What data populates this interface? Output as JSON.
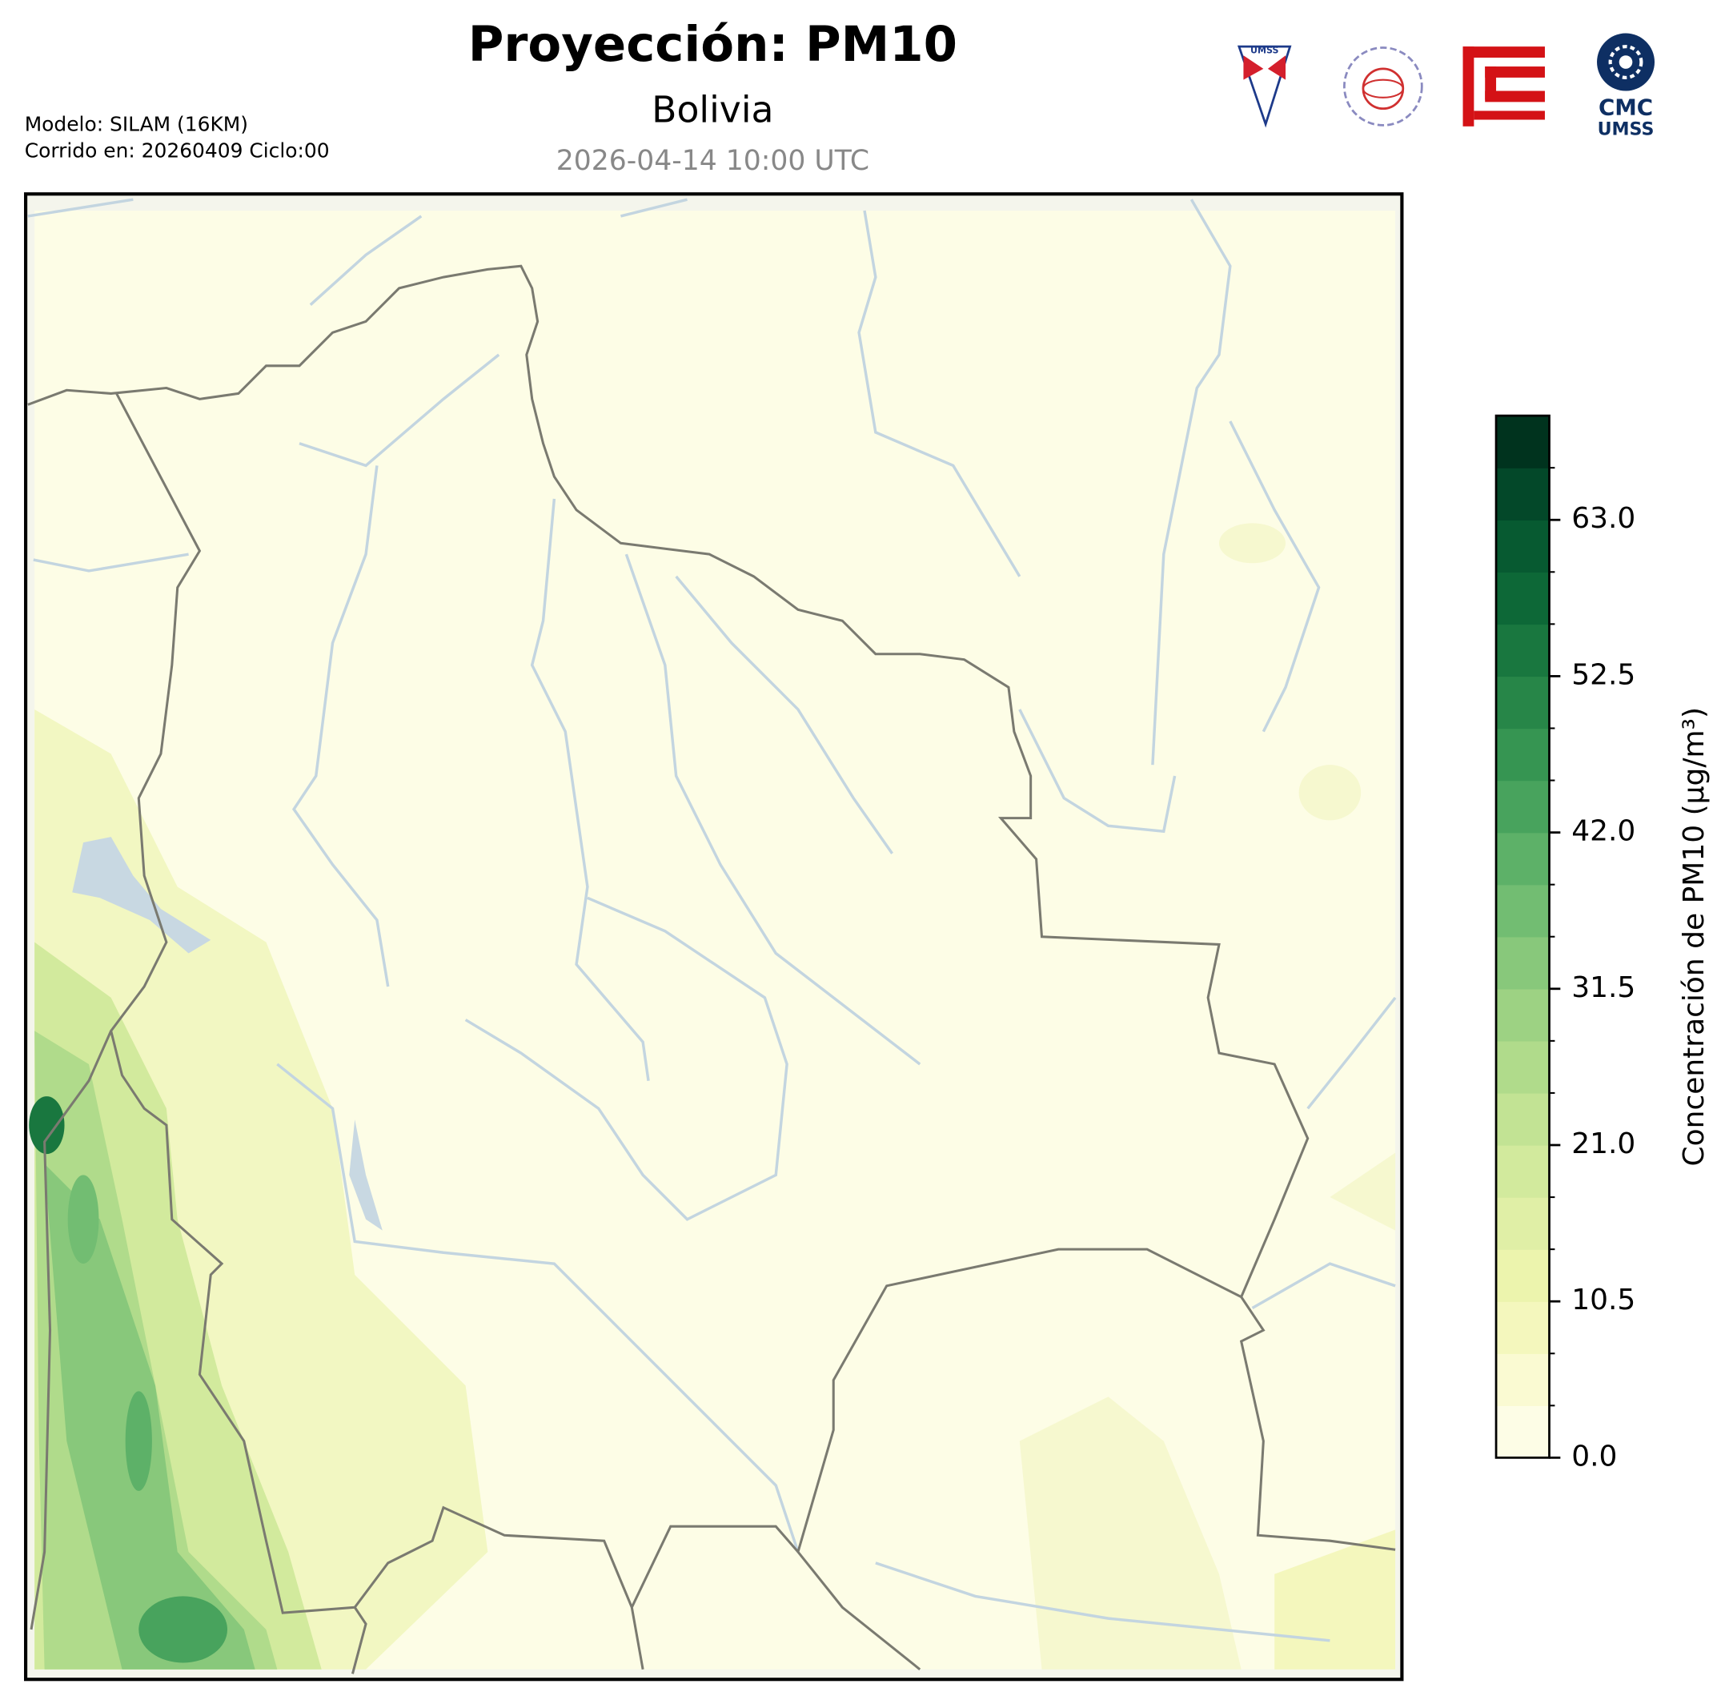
{
  "chart_data": {
    "type": "contour-map",
    "title": "Proyección: PM10",
    "subtitle": "Bolivia",
    "datetime": "2026-04-14 10:00 UTC",
    "model": "Modelo: SILAM (16KM)",
    "run": "Corrido en: 20260409 Ciclo:00",
    "logos": {
      "umss": "UMSS",
      "cmc": "CMC",
      "cmc_sub": "UMSS"
    },
    "colorbar": {
      "label": "Concentración de PM10 (μg/m³)",
      "lim": [
        0,
        70
      ],
      "ticks": [
        {
          "value": 0,
          "label": "0.0"
        },
        10.5,
        {
          "value": 21,
          "label": "21.0"
        },
        31.5,
        {
          "value": 42,
          "label": "42.0"
        },
        52.5,
        {
          "value": 63,
          "label": "63.0"
        }
      ],
      "colors": [
        "#fdfde6",
        "#fafad2",
        "#f4f7bd",
        "#ecf4ad",
        "#e0efa6",
        "#d2ea9d",
        "#c2e394",
        "#b0db8b",
        "#9dd283",
        "#88c87b",
        "#72bd72",
        "#5db168",
        "#48a35d",
        "#369552",
        "#278648",
        "#19773f",
        "#0d6837",
        "#075a31",
        "#034829",
        "#00331e"
      ]
    }
  }
}
